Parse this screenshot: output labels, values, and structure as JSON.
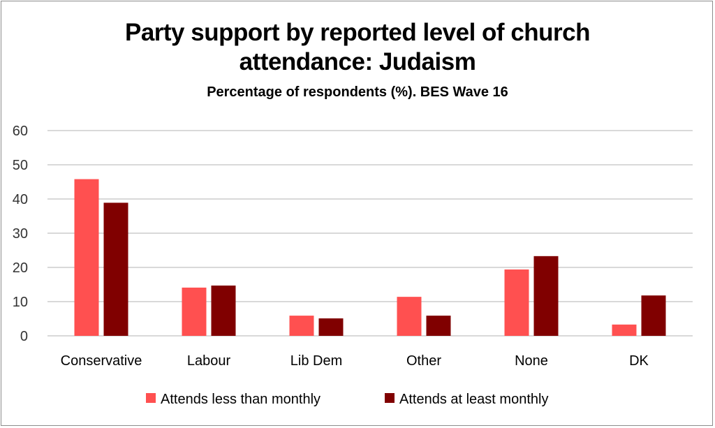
{
  "chart_data": {
    "type": "bar",
    "title": "Party support by reported level of church attendance: Judaism",
    "subtitle": "Percentage of respondents (%). BES Wave 16",
    "categories": [
      "Conservative",
      "Labour",
      "Lib Dem",
      "Other",
      "None",
      "DK"
    ],
    "series": [
      {
        "name": "Attends less than monthly",
        "color": "#ff5050",
        "values": [
          45.8,
          14.1,
          5.9,
          11.4,
          19.4,
          3.3
        ]
      },
      {
        "name": "Attends at least monthly",
        "color": "#800000",
        "values": [
          38.9,
          14.7,
          5.1,
          5.9,
          23.3,
          11.8
        ]
      }
    ],
    "ylim": [
      0,
      60
    ],
    "yticks": [
      "0",
      "10",
      "20",
      "30",
      "40",
      "50",
      "60"
    ],
    "grid": true,
    "legend": "bottom",
    "xlabel": "",
    "ylabel": ""
  }
}
